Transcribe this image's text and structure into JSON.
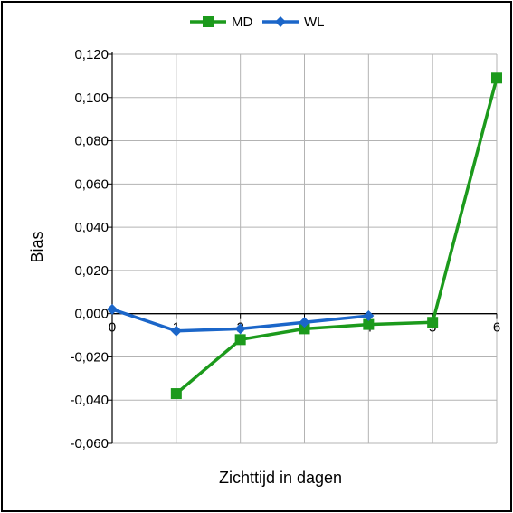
{
  "chart_data": {
    "type": "line",
    "xlabel": "Zichttijd in dagen",
    "ylabel": "Bias",
    "xlim": [
      0,
      6
    ],
    "ylim": [
      -0.06,
      0.12
    ],
    "x_ticks": [
      "0",
      "1",
      "2",
      "3",
      "4",
      "5",
      "6"
    ],
    "y_ticks": [
      "0,120",
      "0,100",
      "0,080",
      "0,060",
      "0,040",
      "0,020",
      "0,000",
      "-0,020",
      "-0,040",
      "-0,060"
    ],
    "grid": true,
    "legend": "top-center",
    "series": [
      {
        "name": "MD",
        "marker": "square",
        "color": "#1c9a1c",
        "x": [
          1,
          2,
          3,
          4,
          5,
          6
        ],
        "y": [
          -0.037,
          -0.012,
          -0.007,
          -0.005,
          -0.004,
          0.109
        ]
      },
      {
        "name": "WL",
        "marker": "diamond",
        "color": "#1b66c9",
        "x": [
          0,
          1,
          2,
          3,
          4
        ],
        "y": [
          0.002,
          -0.008,
          -0.007,
          -0.004,
          -0.001
        ]
      }
    ]
  }
}
